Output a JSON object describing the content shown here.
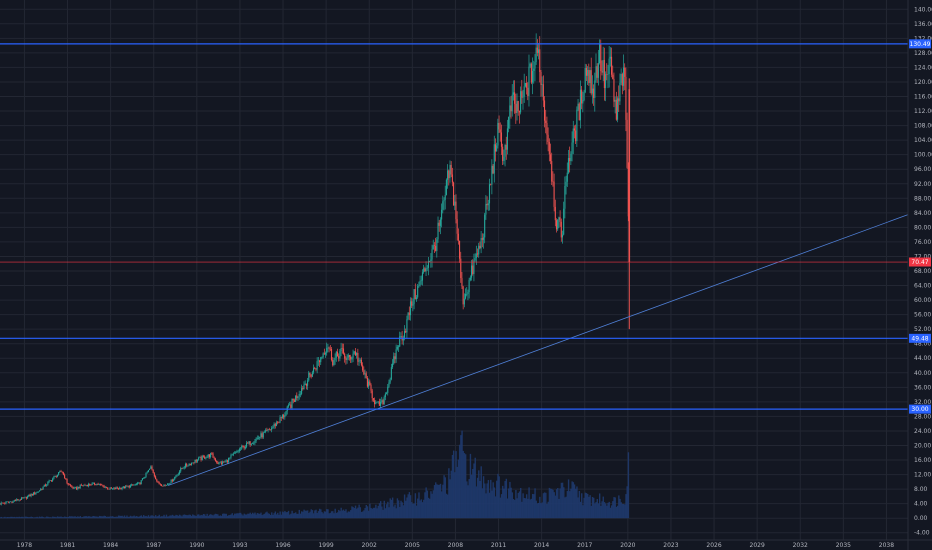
{
  "chart_data": {
    "type": "candlestick",
    "x_scale": "year",
    "xlim": [
      1976.3,
      2039.5
    ],
    "ylim": [
      -6.0,
      142.0
    ],
    "x_ticks": [
      "1978",
      "1981",
      "1984",
      "1987",
      "1990",
      "1993",
      "1996",
      "1999",
      "2002",
      "2005",
      "2008",
      "2011",
      "2014",
      "2017",
      "2020",
      "2023",
      "2026",
      "2029",
      "2032",
      "2035",
      "2038"
    ],
    "y_ticks": [
      "140.00",
      "136.00",
      "132.00",
      "128.00",
      "124.00",
      "120.00",
      "116.00",
      "112.00",
      "108.00",
      "104.00",
      "100.00",
      "96.00",
      "92.00",
      "88.00",
      "84.00",
      "80.00",
      "76.00",
      "72.00",
      "68.00",
      "64.00",
      "60.00",
      "56.00",
      "52.00",
      "48.00",
      "44.00",
      "40.00",
      "36.00",
      "32.00",
      "28.00",
      "24.00",
      "20.00",
      "16.00",
      "12.00",
      "8.00",
      "4.00",
      "0.00",
      "-4.00"
    ],
    "grid": true,
    "last_price": {
      "value": 70.47,
      "label": "70.47",
      "color": "#f23645"
    },
    "horizontal_levels": [
      {
        "value": 130.49,
        "label": "130.49",
        "color": "#2962ff"
      },
      {
        "value": 49.48,
        "label": "49.48",
        "color": "#2962ff"
      },
      {
        "value": 30.0,
        "label": "30.00",
        "color": "#2962ff"
      }
    ],
    "trend_line": {
      "x": [
        1988.0,
        2039.5
      ],
      "y": [
        9.0,
        83.5
      ],
      "color": "#4f7fd6"
    },
    "price_path": {
      "x": [
        1976.3,
        1977,
        1978,
        1979,
        1980,
        1980.6,
        1981,
        1981.5,
        1982,
        1983,
        1984,
        1985,
        1986,
        1986.8,
        1987.3,
        1987.8,
        1988.3,
        1989,
        1990,
        1991,
        1991.5,
        1992,
        1993,
        1994,
        1995,
        1996,
        1997,
        1998,
        1998.6,
        1999.1,
        1999.5,
        2000,
        2000.5,
        2001,
        2001.6,
        2002,
        2002.5,
        2002.9,
        2003.4,
        2004,
        2004.5,
        2005,
        2005.5,
        2006,
        2006.5,
        2007,
        2007.6,
        2008,
        2008.5,
        2008.9,
        2009.3,
        2009.8,
        2010.3,
        2010.9,
        2011.4,
        2011.9,
        2012.4,
        2012.9,
        2013.4,
        2013.8,
        2014.2,
        2014.6,
        2015,
        2015.4,
        2015.8,
        2016.2,
        2016.6,
        2017.1,
        2017.6,
        2018,
        2018.4,
        2018.8,
        2019.2,
        2019.6,
        2019.8,
        2020.0,
        2020.1
      ],
      "y": [
        4.0,
        4.5,
        5.5,
        7.5,
        11.0,
        13.0,
        9.5,
        8.0,
        9.0,
        9.5,
        8.0,
        8.5,
        9.5,
        14.0,
        9.5,
        9.0,
        10.5,
        14.0,
        16.0,
        17.5,
        15.0,
        15.5,
        19.0,
        21.5,
        24.0,
        28.0,
        34.0,
        40.0,
        44.0,
        48.0,
        43.0,
        46.0,
        43.5,
        46.0,
        40.0,
        36.0,
        31.0,
        31.5,
        38.0,
        48.0,
        52.0,
        60.0,
        64.0,
        70.0,
        74.0,
        82.0,
        96.0,
        85.0,
        60.0,
        64.0,
        70.0,
        76.0,
        88.0,
        106.0,
        100.0,
        114.0,
        112.0,
        118.0,
        124.0,
        128.0,
        112.0,
        100.0,
        82.0,
        78.0,
        98.0,
        104.0,
        112.0,
        124.0,
        118.0,
        128.0,
        120.0,
        124.0,
        110.0,
        122.0,
        118.0,
        90.0,
        70.47
      ]
    },
    "volume_path": {
      "x": [
        1976.3,
        1980,
        1985,
        1988,
        1991,
        1994,
        1997,
        2000,
        2002.5,
        2004,
        2006,
        2007.5,
        2008.3,
        2009,
        2010,
        2011,
        2012,
        2013,
        2014,
        2015,
        2016,
        2017,
        2018,
        2019,
        2019.9,
        2020.0,
        2020.1
      ],
      "y": [
        0.3,
        0.4,
        0.6,
        0.8,
        1.0,
        1.3,
        1.8,
        2.6,
        3.5,
        5.0,
        7.0,
        11.0,
        21.0,
        15.0,
        12.0,
        10.0,
        9.0,
        7.5,
        6.0,
        8.0,
        9.0,
        6.0,
        5.5,
        5.0,
        7.0,
        20.0,
        10.0
      ]
    }
  }
}
